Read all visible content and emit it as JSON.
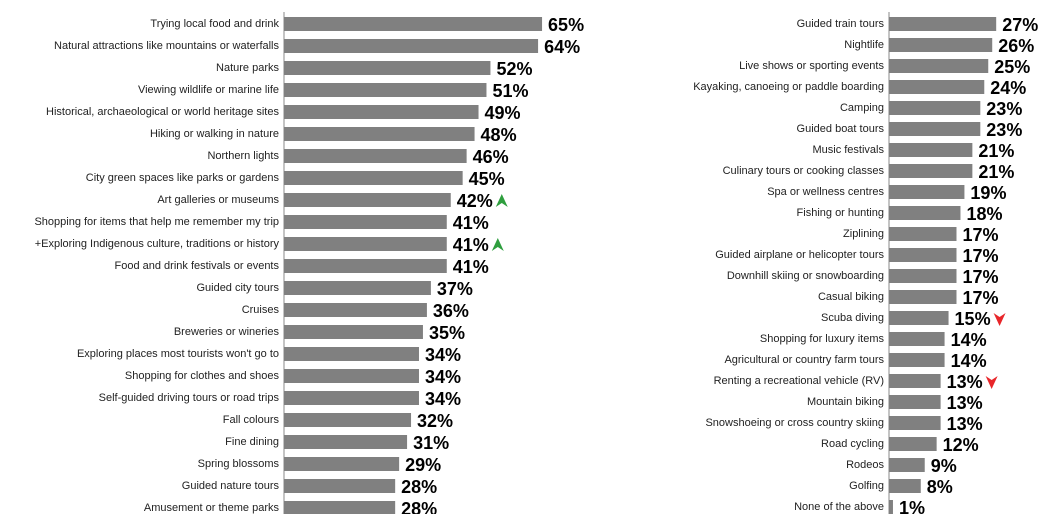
{
  "chart_data": [
    {
      "type": "bar",
      "orientation": "horizontal",
      "color": "#808080",
      "xlim": [
        0,
        100
      ],
      "categories": [
        "Trying local food and drink",
        "Natural attractions like mountains or waterfalls",
        "Nature parks",
        "Viewing wildlife or marine life",
        "Historical, archaeological or world heritage sites",
        "Hiking or walking in nature",
        "Northern lights",
        "City green spaces like parks or gardens",
        "Art galleries or museums",
        "Shopping for items that help me remember my trip",
        "+Exploring Indigenous culture, traditions or history",
        "Food and drink festivals or events",
        "Guided city tours",
        "Cruises",
        "Breweries or wineries",
        "Exploring places most tourists won't go to",
        "Shopping for clothes and shoes",
        "Self-guided driving tours or road trips",
        "Fall colours",
        "Fine dining",
        "Spring blossoms",
        "Guided nature tours",
        "Amusement or theme parks"
      ],
      "values": [
        65,
        64,
        52,
        51,
        49,
        48,
        46,
        45,
        42,
        41,
        41,
        41,
        37,
        36,
        35,
        34,
        34,
        34,
        32,
        31,
        29,
        28,
        28
      ],
      "value_labels": [
        "65%",
        "64%",
        "52%",
        "51%",
        "49%",
        "48%",
        "46%",
        "45%",
        "42%",
        "41%",
        "41%",
        "41%",
        "37%",
        "36%",
        "35%",
        "34%",
        "34%",
        "34%",
        "32%",
        "31%",
        "29%",
        "28%",
        "28%"
      ],
      "markers": [
        {
          "index": 8,
          "direction": "up",
          "color": "#2e9e3e"
        },
        {
          "index": 10,
          "direction": "up",
          "color": "#2e9e3e"
        }
      ]
    },
    {
      "type": "bar",
      "orientation": "horizontal",
      "color": "#808080",
      "xlim": [
        0,
        100
      ],
      "categories": [
        "Guided train tours",
        "Nightlife",
        "Live shows or sporting events",
        "Kayaking, canoeing or paddle boarding",
        "Camping",
        "Guided boat tours",
        "Music festivals",
        "Culinary tours or cooking classes",
        "Spa or wellness centres",
        "Fishing or hunting",
        "Ziplining",
        "Guided airplane or helicopter tours",
        "Downhill skiing or snowboarding",
        "Casual biking",
        "Scuba diving",
        "Shopping for luxury items",
        "Agricultural or country farm tours",
        "Renting a recreational vehicle (RV)",
        "Mountain biking",
        "Snowshoeing or cross country skiing",
        "Road cycling",
        "Rodeos",
        "Golfing",
        "None of the above"
      ],
      "values": [
        27,
        26,
        25,
        24,
        23,
        23,
        21,
        21,
        19,
        18,
        17,
        17,
        17,
        17,
        15,
        14,
        14,
        13,
        13,
        13,
        12,
        9,
        8,
        1
      ],
      "value_labels": [
        "27%",
        "26%",
        "25%",
        "24%",
        "23%",
        "23%",
        "21%",
        "21%",
        "19%",
        "18%",
        "17%",
        "17%",
        "17%",
        "17%",
        "15%",
        "14%",
        "14%",
        "13%",
        "13%",
        "13%",
        "12%",
        "9%",
        "8%",
        "1%"
      ],
      "markers": [
        {
          "index": 14,
          "direction": "down",
          "color": "#e8262a"
        },
        {
          "index": 17,
          "direction": "down",
          "color": "#e8262a"
        }
      ]
    }
  ]
}
